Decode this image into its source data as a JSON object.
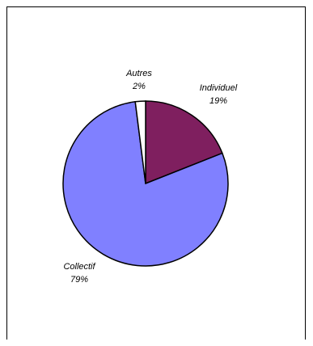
{
  "chart_data": {
    "type": "pie",
    "title": "",
    "slices": [
      {
        "label": "Individuel",
        "value": 19,
        "display": "19%",
        "color": "#7f1f5f"
      },
      {
        "label": "Collectif",
        "value": 79,
        "display": "79%",
        "color": "#8080ff"
      },
      {
        "label": "Autres",
        "value": 2,
        "display": "2%",
        "color": "#ffffff"
      }
    ],
    "start": "12 o'clock, clockwise",
    "legend": "none"
  }
}
